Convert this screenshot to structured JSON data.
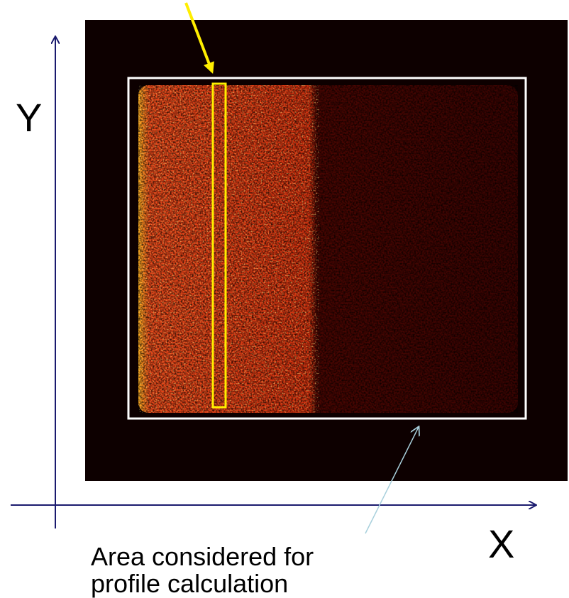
{
  "axes": {
    "y_label": "Y",
    "x_label": "X"
  },
  "annotation": {
    "lines": [
      "Area considered for",
      "profile calculation"
    ]
  }
}
